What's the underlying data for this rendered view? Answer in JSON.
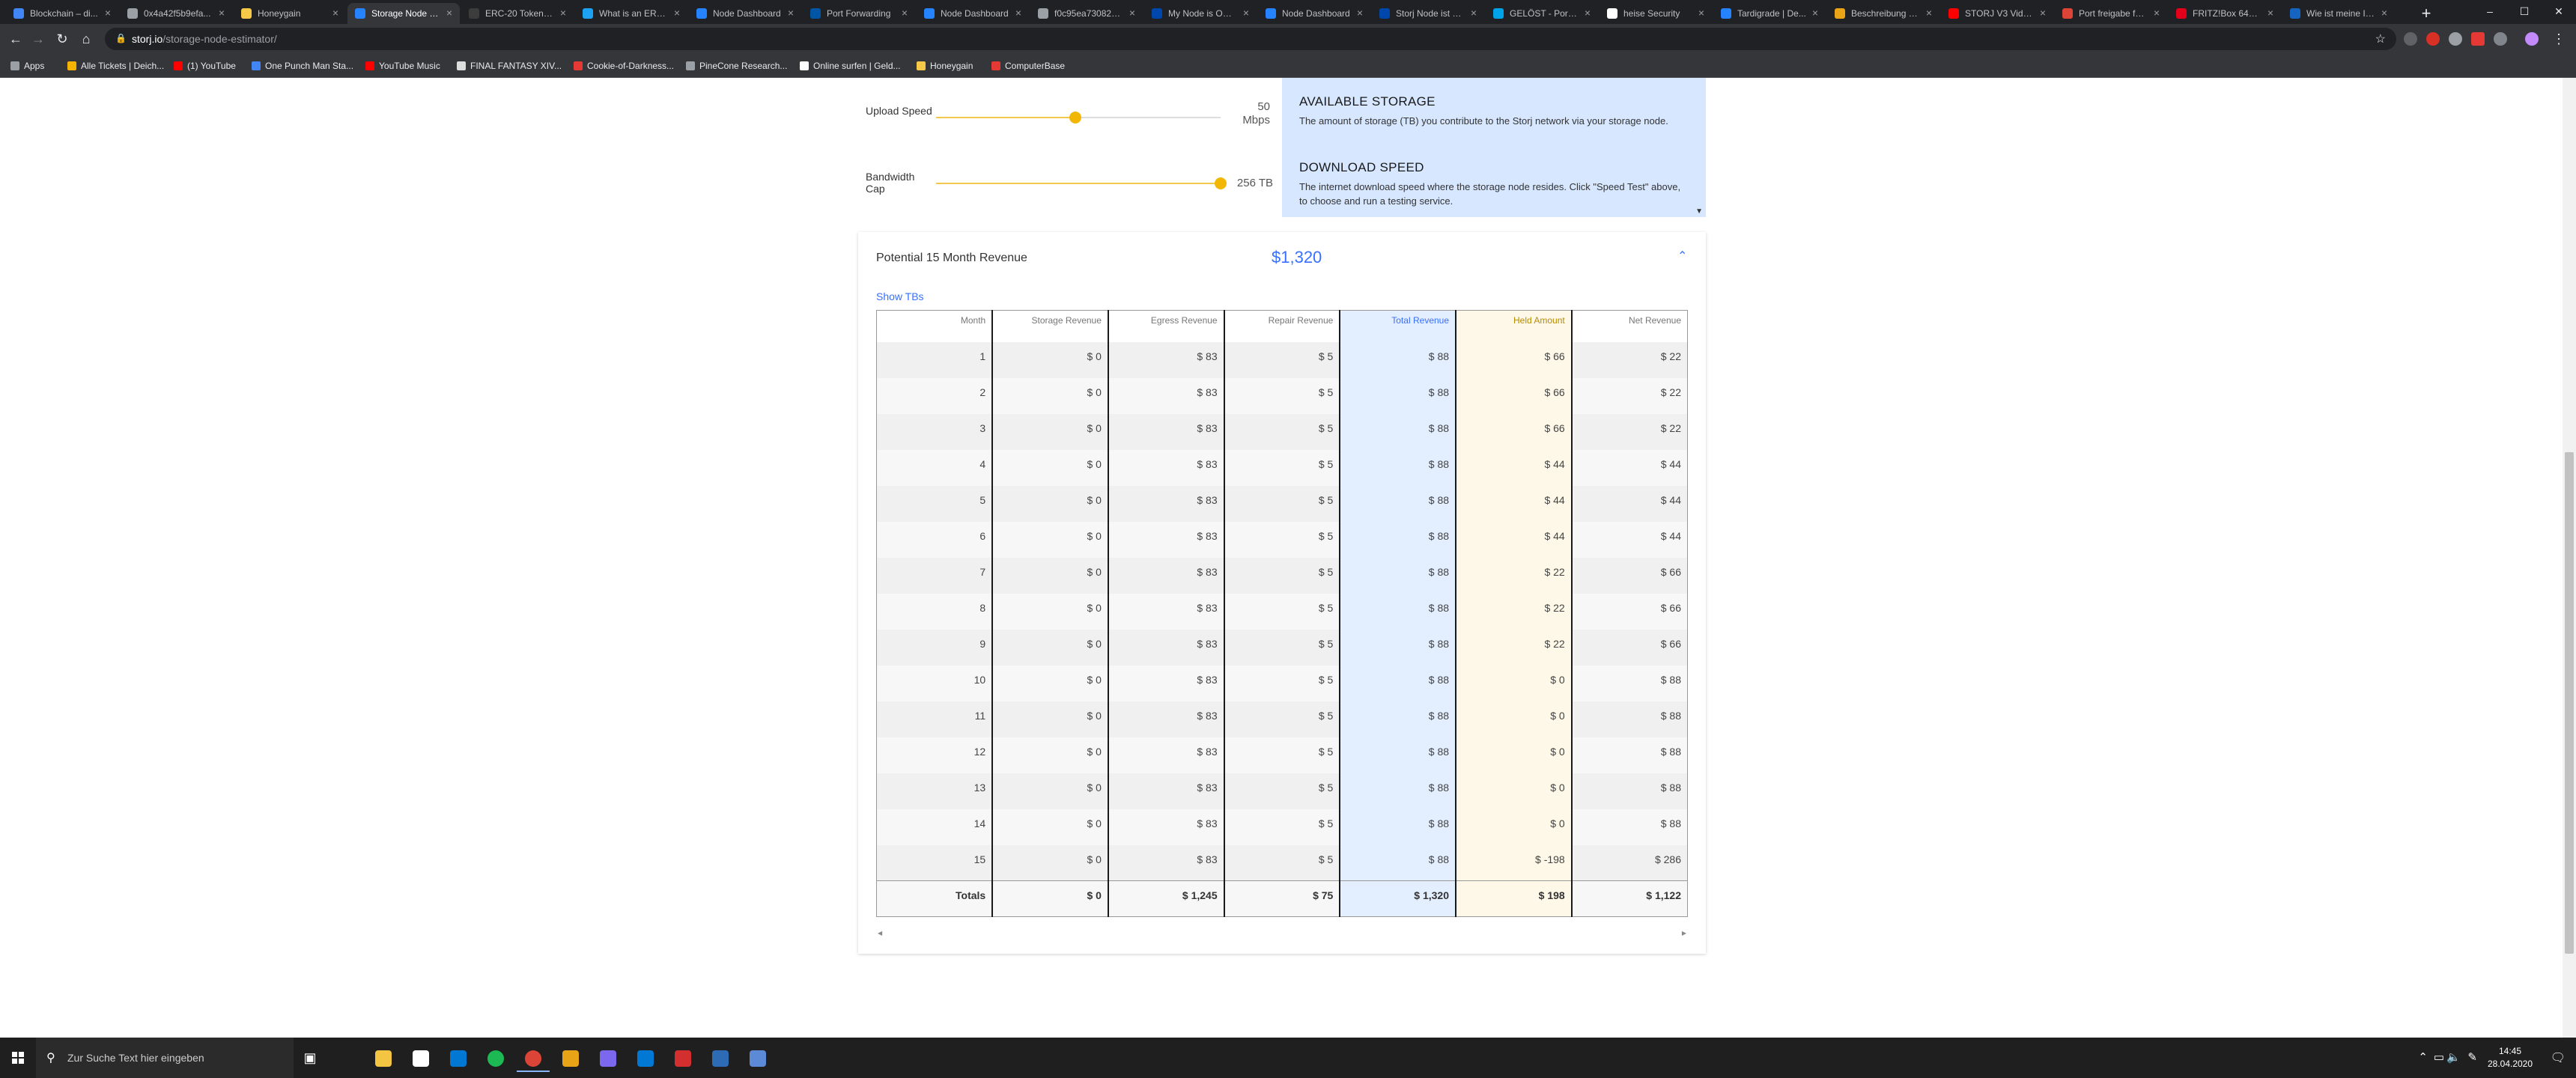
{
  "browser": {
    "tabs": [
      {
        "label": "Blockchain – di...",
        "color": "#4285f4",
        "active": false
      },
      {
        "label": "0x4a42f5b9efa...",
        "color": "#9aa0a6",
        "active": false
      },
      {
        "label": "Honeygain",
        "color": "#f7c948",
        "active": false
      },
      {
        "label": "Storage Node E...",
        "color": "#2683ff",
        "active": true
      },
      {
        "label": "ERC-20 Token St...",
        "color": "#3c3c3d",
        "active": false
      },
      {
        "label": "What is an ERC-...",
        "color": "#1da1f2",
        "active": false
      },
      {
        "label": "Node Dashboard",
        "color": "#2683ff",
        "active": false
      },
      {
        "label": "Port Forwarding",
        "color": "#0055a4",
        "active": false
      },
      {
        "label": "Node Dashboard",
        "color": "#2683ff",
        "active": false
      },
      {
        "label": "f0c95ea73082d...",
        "color": "#9aa0a6",
        "active": false
      },
      {
        "label": "My Node is OFF...",
        "color": "#0047ab",
        "active": false
      },
      {
        "label": "Node Dashboard",
        "color": "#2683ff",
        "active": false
      },
      {
        "label": "Storj Node ist na...",
        "color": "#0047ab",
        "active": false
      },
      {
        "label": "GELÖST - Port F...",
        "color": "#00a2e8",
        "active": false
      },
      {
        "label": "heise Security",
        "color": "#ffffff",
        "active": false
      },
      {
        "label": "Tardigrade | De...",
        "color": "#2683ff",
        "active": false
      },
      {
        "label": "Beschreibung de...",
        "color": "#e8a317",
        "active": false
      },
      {
        "label": "STORJ V3 Video...",
        "color": "#ff0000",
        "active": false
      },
      {
        "label": "Port freigabe für...",
        "color": "#db4437",
        "active": false
      },
      {
        "label": "FRITZ!Box 6490...",
        "color": "#e2001a",
        "active": false
      },
      {
        "label": "Wie ist meine IP...",
        "color": "#1565c0",
        "active": false
      }
    ],
    "url_host": "storj.io",
    "url_path": "/storage-node-estimator/",
    "bookmarks": [
      {
        "label": "Apps",
        "color": "#9aa0a6"
      },
      {
        "label": "Alle Tickets | Deich...",
        "color": "#f4b400"
      },
      {
        "label": "(1) YouTube",
        "color": "#ff0000"
      },
      {
        "label": "One Punch Man Sta...",
        "color": "#4285f4"
      },
      {
        "label": "YouTube Music",
        "color": "#ff0000"
      },
      {
        "label": "FINAL FANTASY XIV...",
        "color": "#dddddd"
      },
      {
        "label": "Cookie-of-Darkness...",
        "color": "#e53935"
      },
      {
        "label": "PineCone Research...",
        "color": "#9aa0a6"
      },
      {
        "label": "Online surfen | Geld...",
        "color": "#ffffff"
      },
      {
        "label": "Honeygain",
        "color": "#f7c948"
      },
      {
        "label": "ComputerBase",
        "color": "#e53935"
      }
    ]
  },
  "sliders": {
    "upload": {
      "label": "Upload Speed",
      "value": "50",
      "unit": "Mbps",
      "fraction": 0.49
    },
    "bandwidth": {
      "label": "Bandwidth Cap",
      "value": "256 TB",
      "fraction": 1.0
    }
  },
  "info": {
    "storage_title": "AVAILABLE STORAGE",
    "storage_text": "The amount of storage (TB) you contribute to the Storj network via your storage node.",
    "download_title": "DOWNLOAD SPEED",
    "download_text": "The internet download speed where the storage node resides. Click \"Speed Test\" above, to choose and run a testing service."
  },
  "revenue": {
    "title": "Potential 15 Month Revenue",
    "total": "$1,320",
    "show_tbs": "Show TBs",
    "columns": [
      "Month",
      "Storage Revenue",
      "Egress Revenue",
      "Repair Revenue",
      "Total Revenue",
      "Held Amount",
      "Net Revenue"
    ],
    "rows": [
      [
        "1",
        "$ 0",
        "$ 83",
        "$ 5",
        "$ 88",
        "$ 66",
        "$ 22"
      ],
      [
        "2",
        "$ 0",
        "$ 83",
        "$ 5",
        "$ 88",
        "$ 66",
        "$ 22"
      ],
      [
        "3",
        "$ 0",
        "$ 83",
        "$ 5",
        "$ 88",
        "$ 66",
        "$ 22"
      ],
      [
        "4",
        "$ 0",
        "$ 83",
        "$ 5",
        "$ 88",
        "$ 44",
        "$ 44"
      ],
      [
        "5",
        "$ 0",
        "$ 83",
        "$ 5",
        "$ 88",
        "$ 44",
        "$ 44"
      ],
      [
        "6",
        "$ 0",
        "$ 83",
        "$ 5",
        "$ 88",
        "$ 44",
        "$ 44"
      ],
      [
        "7",
        "$ 0",
        "$ 83",
        "$ 5",
        "$ 88",
        "$ 22",
        "$ 66"
      ],
      [
        "8",
        "$ 0",
        "$ 83",
        "$ 5",
        "$ 88",
        "$ 22",
        "$ 66"
      ],
      [
        "9",
        "$ 0",
        "$ 83",
        "$ 5",
        "$ 88",
        "$ 22",
        "$ 66"
      ],
      [
        "10",
        "$ 0",
        "$ 83",
        "$ 5",
        "$ 88",
        "$ 0",
        "$ 88"
      ],
      [
        "11",
        "$ 0",
        "$ 83",
        "$ 5",
        "$ 88",
        "$ 0",
        "$ 88"
      ],
      [
        "12",
        "$ 0",
        "$ 83",
        "$ 5",
        "$ 88",
        "$ 0",
        "$ 88"
      ],
      [
        "13",
        "$ 0",
        "$ 83",
        "$ 5",
        "$ 88",
        "$ 0",
        "$ 88"
      ],
      [
        "14",
        "$ 0",
        "$ 83",
        "$ 5",
        "$ 88",
        "$ 0",
        "$ 88"
      ],
      [
        "15",
        "$ 0",
        "$ 83",
        "$ 5",
        "$ 88",
        "$ -198",
        "$ 286"
      ]
    ],
    "totals": [
      "Totals",
      "$ 0",
      "$ 1,245",
      "$ 75",
      "$ 1,320",
      "$ 198",
      "$ 1,122"
    ]
  },
  "taskbar": {
    "search_placeholder": "Zur Suche Text hier eingeben",
    "apps": [
      {
        "name": "task-view",
        "glyph": "▣",
        "color": "#1f1f1f"
      },
      {
        "name": "file-explorer",
        "glyph": "",
        "color": "#f4c542"
      },
      {
        "name": "store",
        "glyph": "",
        "color": "#ffffff"
      },
      {
        "name": "mail",
        "glyph": "",
        "color": "#0078d4"
      },
      {
        "name": "chrome",
        "glyph": "",
        "color": "#db4437"
      },
      {
        "name": "spotify",
        "glyph": "",
        "color": "#1db954"
      },
      {
        "name": "app-orange",
        "glyph": "",
        "color": "#e8a317"
      },
      {
        "name": "app-purple",
        "glyph": "",
        "color": "#7b68ee"
      },
      {
        "name": "settings",
        "glyph": "",
        "color": "#0078d4"
      },
      {
        "name": "app-red",
        "glyph": "",
        "color": "#d32f2f"
      },
      {
        "name": "powershell",
        "glyph": "",
        "color": "#2d6bb5"
      },
      {
        "name": "app-blue",
        "glyph": "",
        "color": "#5c8ad6"
      }
    ],
    "time": "14:45",
    "date": "28.04.2020"
  }
}
